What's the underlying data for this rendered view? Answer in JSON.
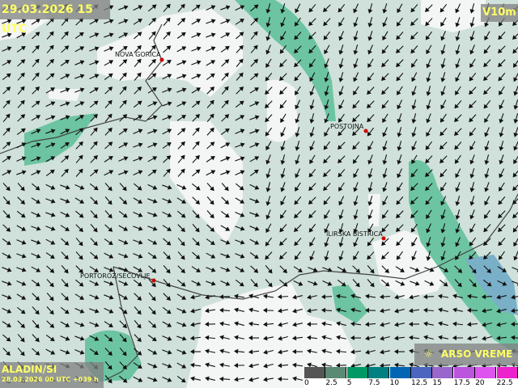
{
  "header": {
    "valid_time": "29.03.2026 15 UTC",
    "parameter": "V10m"
  },
  "footer": {
    "model": "ALADIN/SI",
    "run_info": "28.03.2026 00 UTC +039 h",
    "brand": "ARSO VREME",
    "brand_icon": "sun-cloud-icon"
  },
  "places": [
    {
      "name": "NOVA GORICA"
    },
    {
      "name": "POSTOJNA"
    },
    {
      "name": "ILIRSKA BISTRICA"
    },
    {
      "name": "PORTOROŽ/SEČOVLJE"
    }
  ],
  "legend": {
    "ticks": [
      "0",
      "2.5",
      "5",
      "7.5",
      "10",
      "12.5",
      "15",
      "17.5",
      "20",
      "22.5"
    ],
    "colors": [
      "#555555",
      "#5a8a74",
      "#009966",
      "#008080",
      "#0066b3",
      "#4c66c0",
      "#9966cc",
      "#bb55dd",
      "#dd55ee",
      "#ee22cc"
    ]
  },
  "colors": {
    "background": "#cfe1da",
    "calm": "#f4f5f5",
    "wind_5_7_5": "#6cc4a2",
    "wind_7_5_10": "#7aafc8"
  }
}
